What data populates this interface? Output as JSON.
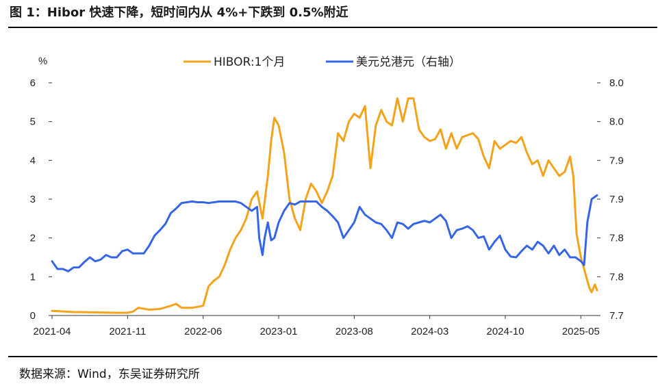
{
  "header": {
    "title": "图 1：Hibor 快速下降，短时间内从 4%+下跌到 0.5%附近"
  },
  "footer": {
    "source": "数据来源：Wind，东吴证券研究所"
  },
  "colors": {
    "hibor": "#F5A21B",
    "usdhkd": "#3465E6"
  },
  "chart_data": {
    "type": "line",
    "title": "Hibor 快速下降，短时间内从 4%+下跌到 0.5%附近",
    "ylabel": "%",
    "y_left_lim": [
      0,
      6
    ],
    "y_left_ticks": [
      "0",
      "1",
      "2",
      "3",
      "4",
      "5",
      "6"
    ],
    "y_right_lim": [
      7.7,
      8.0
    ],
    "y_right_ticks": [
      "7.7",
      "7.8",
      "7.8",
      "7.9",
      "7.9",
      "8.0",
      "8.0"
    ],
    "x_tick_labels": [
      "2021-04",
      "2021-11",
      "2022-06",
      "2023-01",
      "2023-08",
      "2024-03",
      "2024-10",
      "2025-05"
    ],
    "x_range_months": [
      0,
      50.5
    ],
    "legend": [
      "HIBOR:1个月",
      "美元兑港元（右轴）"
    ],
    "series": [
      {
        "name": "HIBOR:1个月",
        "axis": "left",
        "x_months": [
          0,
          2,
          4,
          6,
          7,
          7.5,
          8,
          9,
          10,
          11,
          11.5,
          12,
          13,
          14,
          14.5,
          15,
          15.5,
          16,
          16.5,
          17,
          17.5,
          18,
          18.5,
          19,
          19.5,
          20,
          20.3,
          20.6,
          21,
          21.5,
          22,
          22.5,
          23,
          23.5,
          24,
          24.5,
          25,
          25.5,
          26,
          26.5,
          27,
          27.5,
          28,
          28.5,
          29,
          29.5,
          30,
          30.5,
          31,
          31.5,
          32,
          32.5,
          33,
          33.5,
          34,
          34.5,
          35,
          35.5,
          36,
          36.5,
          37,
          37.5,
          38,
          38.5,
          39,
          39.5,
          40,
          40.5,
          41,
          41.5,
          42,
          42.5,
          43,
          43.5,
          44,
          44.5,
          45,
          45.5,
          46,
          46.5,
          47,
          47.5,
          48,
          48.3,
          48.6,
          49,
          49.3,
          49.6,
          49.8,
          50,
          50.3,
          50.5
        ],
        "values": [
          0.12,
          0.09,
          0.08,
          0.07,
          0.07,
          0.1,
          0.2,
          0.15,
          0.17,
          0.25,
          0.3,
          0.2,
          0.2,
          0.25,
          0.75,
          0.9,
          1.0,
          1.3,
          1.7,
          2.0,
          2.2,
          2.5,
          3.0,
          3.2,
          2.5,
          3.6,
          4.5,
          5.1,
          4.9,
          4.2,
          3.0,
          2.5,
          2.2,
          3.0,
          3.4,
          3.2,
          2.9,
          3.2,
          3.6,
          4.7,
          4.5,
          5.0,
          5.2,
          5.1,
          5.4,
          3.8,
          4.9,
          5.3,
          5.0,
          4.9,
          5.6,
          5.0,
          5.6,
          5.6,
          4.8,
          4.6,
          4.5,
          4.55,
          4.8,
          4.3,
          4.7,
          4.3,
          4.6,
          4.65,
          4.7,
          4.55,
          4.1,
          3.8,
          4.5,
          4.3,
          4.4,
          4.5,
          4.45,
          4.6,
          4.2,
          3.9,
          4.0,
          3.6,
          4.0,
          3.8,
          3.6,
          3.7,
          4.1,
          3.6,
          2.1,
          1.5,
          1.2,
          0.9,
          0.7,
          0.6,
          0.8,
          0.65
        ]
      },
      {
        "name": "美元兑港元（右轴）",
        "axis": "right",
        "x_months": [
          0,
          0.5,
          1,
          1.5,
          2,
          2.5,
          3,
          3.5,
          4,
          4.5,
          5,
          5.5,
          6,
          6.5,
          7,
          7.5,
          8,
          8.5,
          9,
          9.5,
          10,
          10.5,
          11,
          11.5,
          12,
          12.5,
          13,
          13.5,
          14,
          14.5,
          15,
          15.5,
          16,
          16.5,
          17,
          17.5,
          18,
          18.5,
          19,
          19.2,
          19.5,
          19.7,
          20,
          20.3,
          20.6,
          21,
          21.5,
          22,
          22.5,
          23,
          23.5,
          24,
          24.5,
          25,
          25.5,
          26,
          26.5,
          27,
          27.5,
          28,
          28.5,
          29,
          29.5,
          30,
          30.5,
          31,
          31.5,
          32,
          32.5,
          33,
          33.5,
          34,
          34.5,
          35,
          35.5,
          36,
          36.5,
          37,
          37.5,
          38,
          38.5,
          39,
          39.5,
          40,
          40.5,
          41,
          41.5,
          42,
          42.5,
          43,
          43.5,
          44,
          44.5,
          45,
          45.5,
          46,
          46.5,
          47,
          47.5,
          48,
          48.5,
          49,
          49.3,
          49.6,
          50,
          50.5
        ],
        "values": [
          7.77,
          7.76,
          7.76,
          7.757,
          7.762,
          7.762,
          7.769,
          7.775,
          7.77,
          7.772,
          7.778,
          7.775,
          7.775,
          7.783,
          7.785,
          7.78,
          7.78,
          7.78,
          7.79,
          7.803,
          7.81,
          7.818,
          7.832,
          7.838,
          7.845,
          7.846,
          7.847,
          7.846,
          7.846,
          7.845,
          7.846,
          7.847,
          7.847,
          7.847,
          7.847,
          7.845,
          7.84,
          7.835,
          7.84,
          7.8,
          7.778,
          7.8,
          7.82,
          7.797,
          7.8,
          7.82,
          7.835,
          7.845,
          7.843,
          7.847,
          7.847,
          7.847,
          7.847,
          7.84,
          7.835,
          7.828,
          7.82,
          7.8,
          7.81,
          7.82,
          7.84,
          7.83,
          7.825,
          7.82,
          7.818,
          7.81,
          7.8,
          7.82,
          7.818,
          7.812,
          7.818,
          7.82,
          7.822,
          7.82,
          7.825,
          7.83,
          7.822,
          7.8,
          7.81,
          7.812,
          7.815,
          7.81,
          7.8,
          7.802,
          7.785,
          7.795,
          7.803,
          7.785,
          7.776,
          7.775,
          7.783,
          7.79,
          7.785,
          7.795,
          7.79,
          7.78,
          7.79,
          7.778,
          7.785,
          7.775,
          7.775,
          7.77,
          7.765,
          7.82,
          7.85,
          7.855
        ]
      }
    ]
  }
}
